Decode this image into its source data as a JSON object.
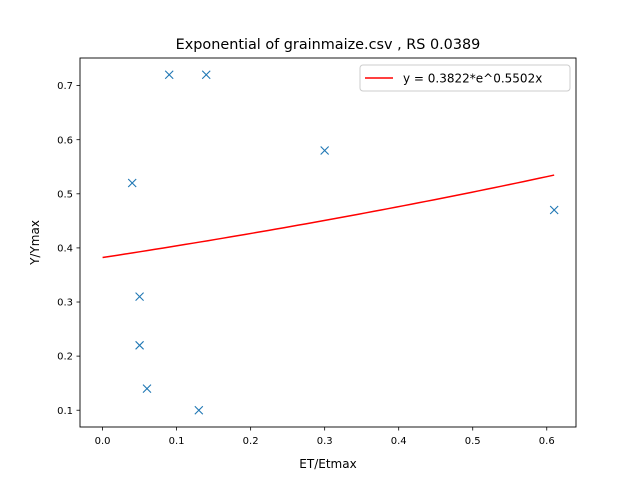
{
  "chart_data": {
    "type": "scatter",
    "title": "Exponential of grainmaize.csv , RS 0.0389",
    "xlabel": "ET/Etmax",
    "ylabel": "Y/Ymax",
    "xlim": [
      -0.0305,
      0.6395
    ],
    "ylim": [
      0.069,
      0.751
    ],
    "xticks": [
      0.0,
      0.1,
      0.2,
      0.3,
      0.4,
      0.5,
      0.6
    ],
    "xtick_labels": [
      "0.0",
      "0.1",
      "0.2",
      "0.3",
      "0.4",
      "0.5",
      "0.6"
    ],
    "yticks": [
      0.1,
      0.2,
      0.3,
      0.4,
      0.5,
      0.6,
      0.7
    ],
    "ytick_labels": [
      "0.1",
      "0.2",
      "0.3",
      "0.4",
      "0.5",
      "0.6",
      "0.7"
    ],
    "grid": false,
    "legend_position": "top-right",
    "series": [
      {
        "type": "scatter",
        "marker": "x",
        "color": "#1f77b4",
        "points": [
          {
            "x": 0.09,
            "y": 0.72
          },
          {
            "x": 0.14,
            "y": 0.72
          },
          {
            "x": 0.3,
            "y": 0.58
          },
          {
            "x": 0.04,
            "y": 0.52
          },
          {
            "x": 0.61,
            "y": 0.47
          },
          {
            "x": 0.05,
            "y": 0.31
          },
          {
            "x": 0.05,
            "y": 0.22
          },
          {
            "x": 0.06,
            "y": 0.14
          },
          {
            "x": 0.13,
            "y": 0.1
          }
        ]
      },
      {
        "type": "line",
        "name": "y = 0.3822*e^0.5502x",
        "color": "#ff0000",
        "a": 0.3822,
        "b": 0.5502,
        "x_range": [
          0.0,
          0.61
        ]
      }
    ]
  }
}
